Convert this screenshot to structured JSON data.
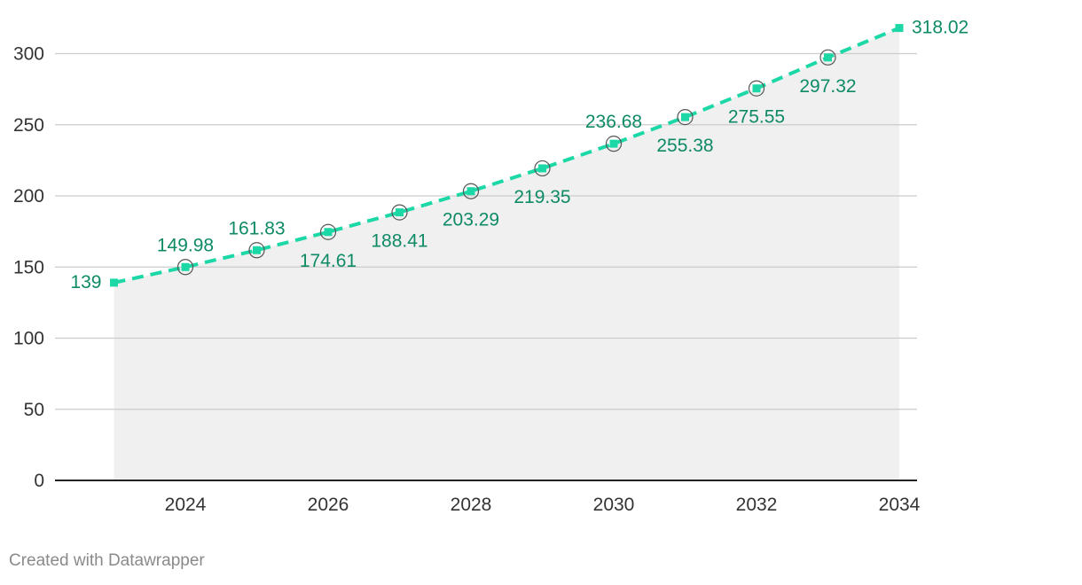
{
  "chart_data": {
    "type": "area",
    "title": "",
    "xlabel": "",
    "ylabel": "",
    "x": [
      2023,
      2024,
      2025,
      2026,
      2027,
      2028,
      2029,
      2030,
      2031,
      2032,
      2033,
      2034
    ],
    "values": [
      139,
      149.98,
      161.83,
      174.61,
      188.41,
      203.29,
      219.35,
      236.68,
      255.38,
      275.55,
      297.32,
      318.02
    ],
    "value_labels": [
      "139",
      "149.98",
      "161.83",
      "174.61",
      "188.41",
      "203.29",
      "219.35",
      "236.68",
      "255.38",
      "275.55",
      "297.32",
      "318.02"
    ],
    "x_ticks": [
      2024,
      2026,
      2028,
      2030,
      2032,
      2034
    ],
    "x_tick_labels": [
      "2024",
      "2026",
      "2028",
      "2030",
      "2032",
      "2034"
    ],
    "y_ticks": [
      0,
      50,
      100,
      150,
      200,
      250,
      300
    ],
    "y_tick_labels": [
      "0",
      "50",
      "100",
      "150",
      "200",
      "250",
      "300"
    ],
    "xlim": [
      2022.2,
      2034.4
    ],
    "ylim": [
      0,
      300
    ],
    "grid": true,
    "line_style": "dashed",
    "colors": {
      "line": "#1cd8a6",
      "label": "#0e8a66",
      "area": "#f0f0f0",
      "grid": "#cccccc",
      "axis": "#222222",
      "marker_ring": "#555555"
    }
  },
  "footer": {
    "credit": "Created with Datawrapper"
  }
}
